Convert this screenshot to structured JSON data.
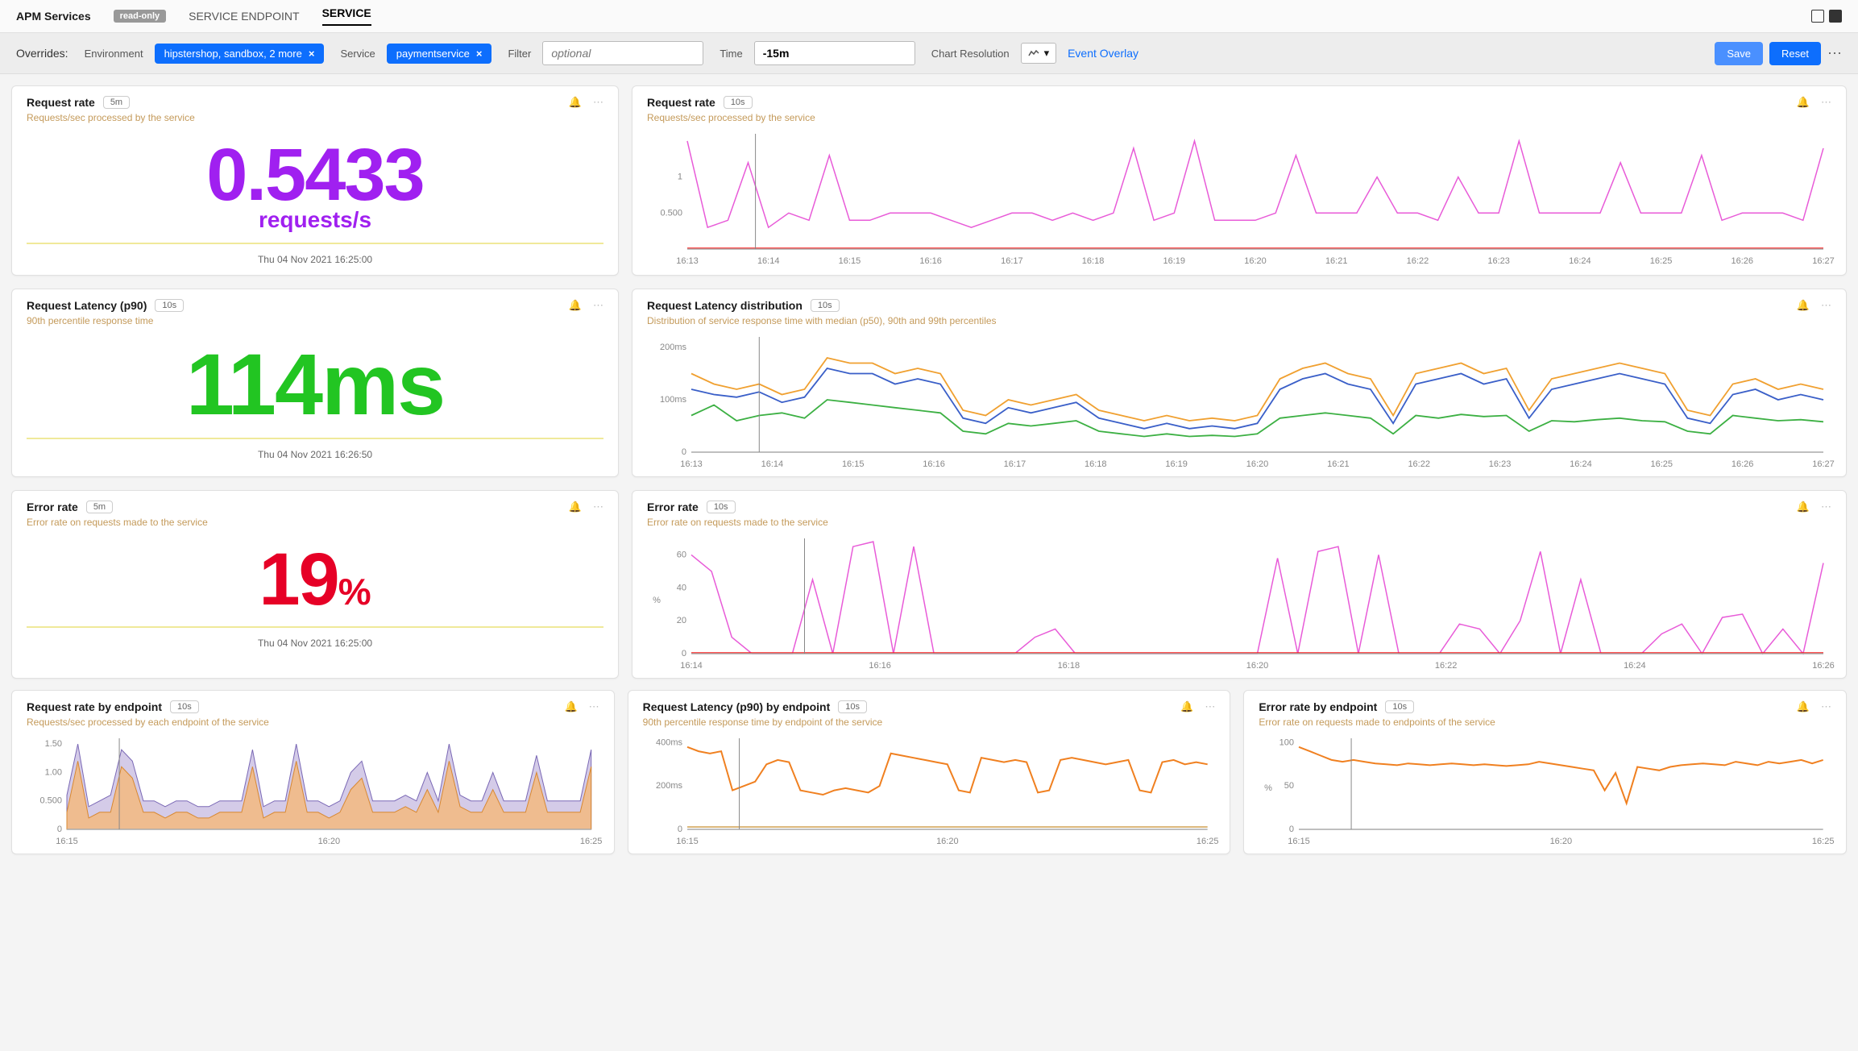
{
  "header": {
    "title": "APM Services",
    "readonly_badge": "read-only",
    "tabs": [
      "SERVICE ENDPOINT",
      "SERVICE"
    ],
    "active_tab": 1
  },
  "overrides": {
    "label": "Overrides:",
    "env_label": "Environment",
    "env_pill": "hipstershop, sandbox, 2 more",
    "service_label": "Service",
    "service_pill": "paymentservice",
    "filter_label": "Filter",
    "filter_placeholder": "optional",
    "time_label": "Time",
    "time_value": "-15m",
    "resolution_label": "Chart Resolution",
    "event_overlay": "Event Overlay",
    "save": "Save",
    "reset": "Reset"
  },
  "colors": {
    "purple": "#a020f0",
    "green": "#22c522",
    "red": "#e60026",
    "blue_line": "#3a5fc8",
    "orange_line": "#f0a030",
    "green_line": "#3cb043",
    "pink_line": "#e85bd8",
    "red_line": "#ff1a1a",
    "area_purple": "#b8a8d8",
    "area_orange": "#f5b878",
    "orange2": "#f08020"
  },
  "timeAxis": {
    "full": [
      "16:13",
      "16:14",
      "16:15",
      "16:16",
      "16:17",
      "16:18",
      "16:19",
      "16:20",
      "16:21",
      "16:22",
      "16:23",
      "16:24",
      "16:25",
      "16:26",
      "16:27"
    ],
    "even": [
      "16:14",
      "16:16",
      "16:18",
      "16:20",
      "16:22",
      "16:24",
      "16:26"
    ],
    "three": [
      "16:15",
      "16:20",
      "16:25"
    ]
  },
  "cards": {
    "req_rate_big": {
      "title": "Request rate",
      "interval": "5m",
      "subtitle": "Requests/sec processed by the service",
      "value": "0.5433",
      "unit": "requests/s",
      "timestamp": "Thu 04 Nov 2021 16:25:00"
    },
    "req_rate_chart": {
      "title": "Request rate",
      "interval": "10s",
      "subtitle": "Requests/sec processed by the service",
      "yticks": [
        "1",
        "0.500"
      ],
      "series": [
        {
          "key": "pink",
          "vals": [
            1.5,
            0.3,
            0.4,
            1.2,
            0.3,
            0.5,
            0.4,
            1.3,
            0.4,
            0.4,
            0.5,
            0.5,
            0.5,
            0.4,
            0.3,
            0.4,
            0.5,
            0.5,
            0.4,
            0.5,
            0.4,
            0.5,
            1.4,
            0.4,
            0.5,
            1.5,
            0.4,
            0.4,
            0.4,
            0.5,
            1.3,
            0.5,
            0.5,
            0.5,
            1.0,
            0.5,
            0.5,
            0.4,
            1.0,
            0.5,
            0.5,
            1.5,
            0.5,
            0.5,
            0.5,
            0.5,
            1.2,
            0.5,
            0.5,
            0.5,
            1.3,
            0.4,
            0.5,
            0.5,
            0.5,
            0.4,
            1.4
          ]
        },
        {
          "key": "redbase",
          "vals": "flat0"
        }
      ],
      "ymax": 1.6
    },
    "latency_big": {
      "title": "Request Latency (p90)",
      "interval": "10s",
      "subtitle": "90th percentile response time",
      "value": "114ms",
      "timestamp": "Thu 04 Nov 2021 16:26:50"
    },
    "latency_dist": {
      "title": "Request Latency distribution",
      "interval": "10s",
      "subtitle": "Distribution of service response time with median (p50), 90th and 99th percentiles",
      "yticks": [
        "200ms",
        "100ms",
        "0"
      ],
      "ymax": 220,
      "series": {
        "p99": [
          150,
          130,
          120,
          130,
          110,
          120,
          180,
          170,
          170,
          150,
          160,
          150,
          80,
          70,
          100,
          90,
          100,
          110,
          80,
          70,
          60,
          70,
          60,
          65,
          60,
          70,
          140,
          160,
          170,
          150,
          140,
          70,
          150,
          160,
          170,
          150,
          160,
          80,
          140,
          150,
          160,
          170,
          160,
          150,
          80,
          70,
          130,
          140,
          120,
          130,
          120
        ],
        "p90": [
          120,
          110,
          105,
          115,
          95,
          105,
          160,
          150,
          150,
          130,
          140,
          130,
          65,
          55,
          85,
          75,
          85,
          95,
          65,
          55,
          45,
          55,
          45,
          50,
          45,
          55,
          120,
          140,
          150,
          130,
          120,
          55,
          130,
          140,
          150,
          130,
          140,
          65,
          120,
          130,
          140,
          150,
          140,
          130,
          65,
          55,
          110,
          120,
          100,
          110,
          100
        ],
        "p50": [
          70,
          90,
          60,
          70,
          75,
          65,
          100,
          95,
          90,
          85,
          80,
          75,
          40,
          35,
          55,
          50,
          55,
          60,
          40,
          35,
          30,
          35,
          30,
          32,
          30,
          35,
          65,
          70,
          75,
          70,
          65,
          35,
          70,
          65,
          72,
          68,
          70,
          40,
          60,
          58,
          62,
          65,
          60,
          58,
          40,
          35,
          70,
          65,
          60,
          62,
          58
        ]
      }
    },
    "error_big": {
      "title": "Error rate",
      "interval": "5m",
      "subtitle": "Error rate on requests made to the service",
      "value": "19",
      "unit": "%",
      "timestamp": "Thu 04 Nov 2021 16:25:00"
    },
    "error_chart": {
      "title": "Error rate",
      "interval": "10s",
      "subtitle": "Error rate on requests made to the service",
      "yticks": [
        "60",
        "40",
        "20",
        "0"
      ],
      "ylabel": "%",
      "ymax": 70,
      "series": [
        60,
        50,
        10,
        0,
        0,
        0,
        45,
        0,
        65,
        68,
        0,
        65,
        0,
        0,
        0,
        0,
        0,
        10,
        15,
        0,
        0,
        0,
        0,
        0,
        0,
        0,
        0,
        0,
        0,
        58,
        0,
        62,
        65,
        0,
        60,
        0,
        0,
        0,
        18,
        15,
        0,
        20,
        62,
        0,
        45,
        0,
        0,
        0,
        12,
        18,
        0,
        22,
        24,
        0,
        15,
        0,
        55
      ]
    },
    "req_by_ep": {
      "title": "Request rate by endpoint",
      "interval": "10s",
      "subtitle": "Requests/sec processed by each endpoint of the service",
      "yticks": [
        "1.50",
        "1.00",
        "0.500",
        "0"
      ],
      "ymax": 1.6,
      "purple": [
        0.6,
        1.5,
        0.4,
        0.5,
        0.6,
        1.4,
        1.2,
        0.5,
        0.5,
        0.4,
        0.5,
        0.5,
        0.4,
        0.4,
        0.5,
        0.5,
        0.5,
        1.4,
        0.4,
        0.5,
        0.5,
        1.5,
        0.5,
        0.5,
        0.4,
        0.5,
        1.0,
        1.2,
        0.5,
        0.5,
        0.5,
        0.6,
        0.5,
        1.0,
        0.5,
        1.5,
        0.6,
        0.5,
        0.5,
        1.0,
        0.5,
        0.5,
        0.5,
        1.3,
        0.5,
        0.5,
        0.5,
        0.5,
        1.4
      ],
      "orange": [
        0.3,
        1.2,
        0.2,
        0.3,
        0.3,
        1.1,
        0.9,
        0.3,
        0.3,
        0.2,
        0.3,
        0.3,
        0.2,
        0.2,
        0.3,
        0.3,
        0.3,
        1.1,
        0.2,
        0.3,
        0.3,
        1.2,
        0.3,
        0.3,
        0.2,
        0.3,
        0.7,
        0.9,
        0.3,
        0.3,
        0.3,
        0.4,
        0.3,
        0.7,
        0.3,
        1.2,
        0.4,
        0.3,
        0.3,
        0.7,
        0.3,
        0.3,
        0.3,
        1.0,
        0.3,
        0.3,
        0.3,
        0.3,
        1.1
      ]
    },
    "lat_by_ep": {
      "title": "Request Latency (p90) by endpoint",
      "interval": "10s",
      "subtitle": "90th percentile response time by endpoint of the service",
      "yticks": [
        "400ms",
        "200ms",
        "0"
      ],
      "ymax": 420,
      "orange": [
        380,
        360,
        350,
        360,
        180,
        200,
        220,
        300,
        320,
        310,
        180,
        170,
        160,
        180,
        190,
        180,
        170,
        200,
        350,
        340,
        330,
        320,
        310,
        300,
        180,
        170,
        330,
        320,
        310,
        320,
        310,
        170,
        180,
        320,
        330,
        320,
        310,
        300,
        310,
        320,
        180,
        170,
        310,
        320,
        300,
        310,
        300
      ],
      "bottom": "flat_low"
    },
    "err_by_ep": {
      "title": "Error rate by endpoint",
      "interval": "10s",
      "subtitle": "Error rate on requests made to endpoints of the service",
      "yticks": [
        "100",
        "50",
        "0"
      ],
      "ylabel": "%",
      "ymax": 105,
      "orange": [
        95,
        90,
        85,
        80,
        78,
        80,
        78,
        76,
        75,
        74,
        76,
        75,
        74,
        75,
        76,
        75,
        74,
        75,
        74,
        73,
        74,
        75,
        78,
        76,
        74,
        72,
        70,
        68,
        45,
        65,
        30,
        72,
        70,
        68,
        72,
        74,
        75,
        76,
        75,
        74,
        78,
        76,
        74,
        78,
        76,
        78,
        80,
        76,
        80
      ]
    }
  }
}
